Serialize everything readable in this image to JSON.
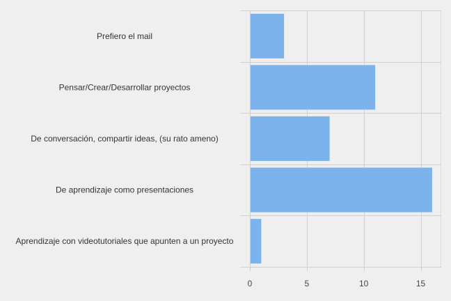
{
  "chart_data": {
    "type": "bar",
    "orientation": "horizontal",
    "categories": [
      "Prefiero el mail",
      "Pensar/Crear/Desarrollar proyectos",
      "De conversación, compartir ideas, (su rato ameno)",
      "De aprendizaje como presentaciones",
      "Aprendizaje con videotutoriales que apunten a un proyecto"
    ],
    "values": [
      3,
      11,
      7,
      16,
      1
    ],
    "xlim": [
      0,
      16.8
    ],
    "xticks": [
      "0",
      "5",
      "10",
      "15"
    ],
    "tick_values": [
      0,
      5,
      10,
      15
    ],
    "grid": true,
    "legend": "none",
    "colors": {
      "bar": "#7cb3ec",
      "background": "#efefef",
      "grid": "#d0d0d0"
    }
  }
}
